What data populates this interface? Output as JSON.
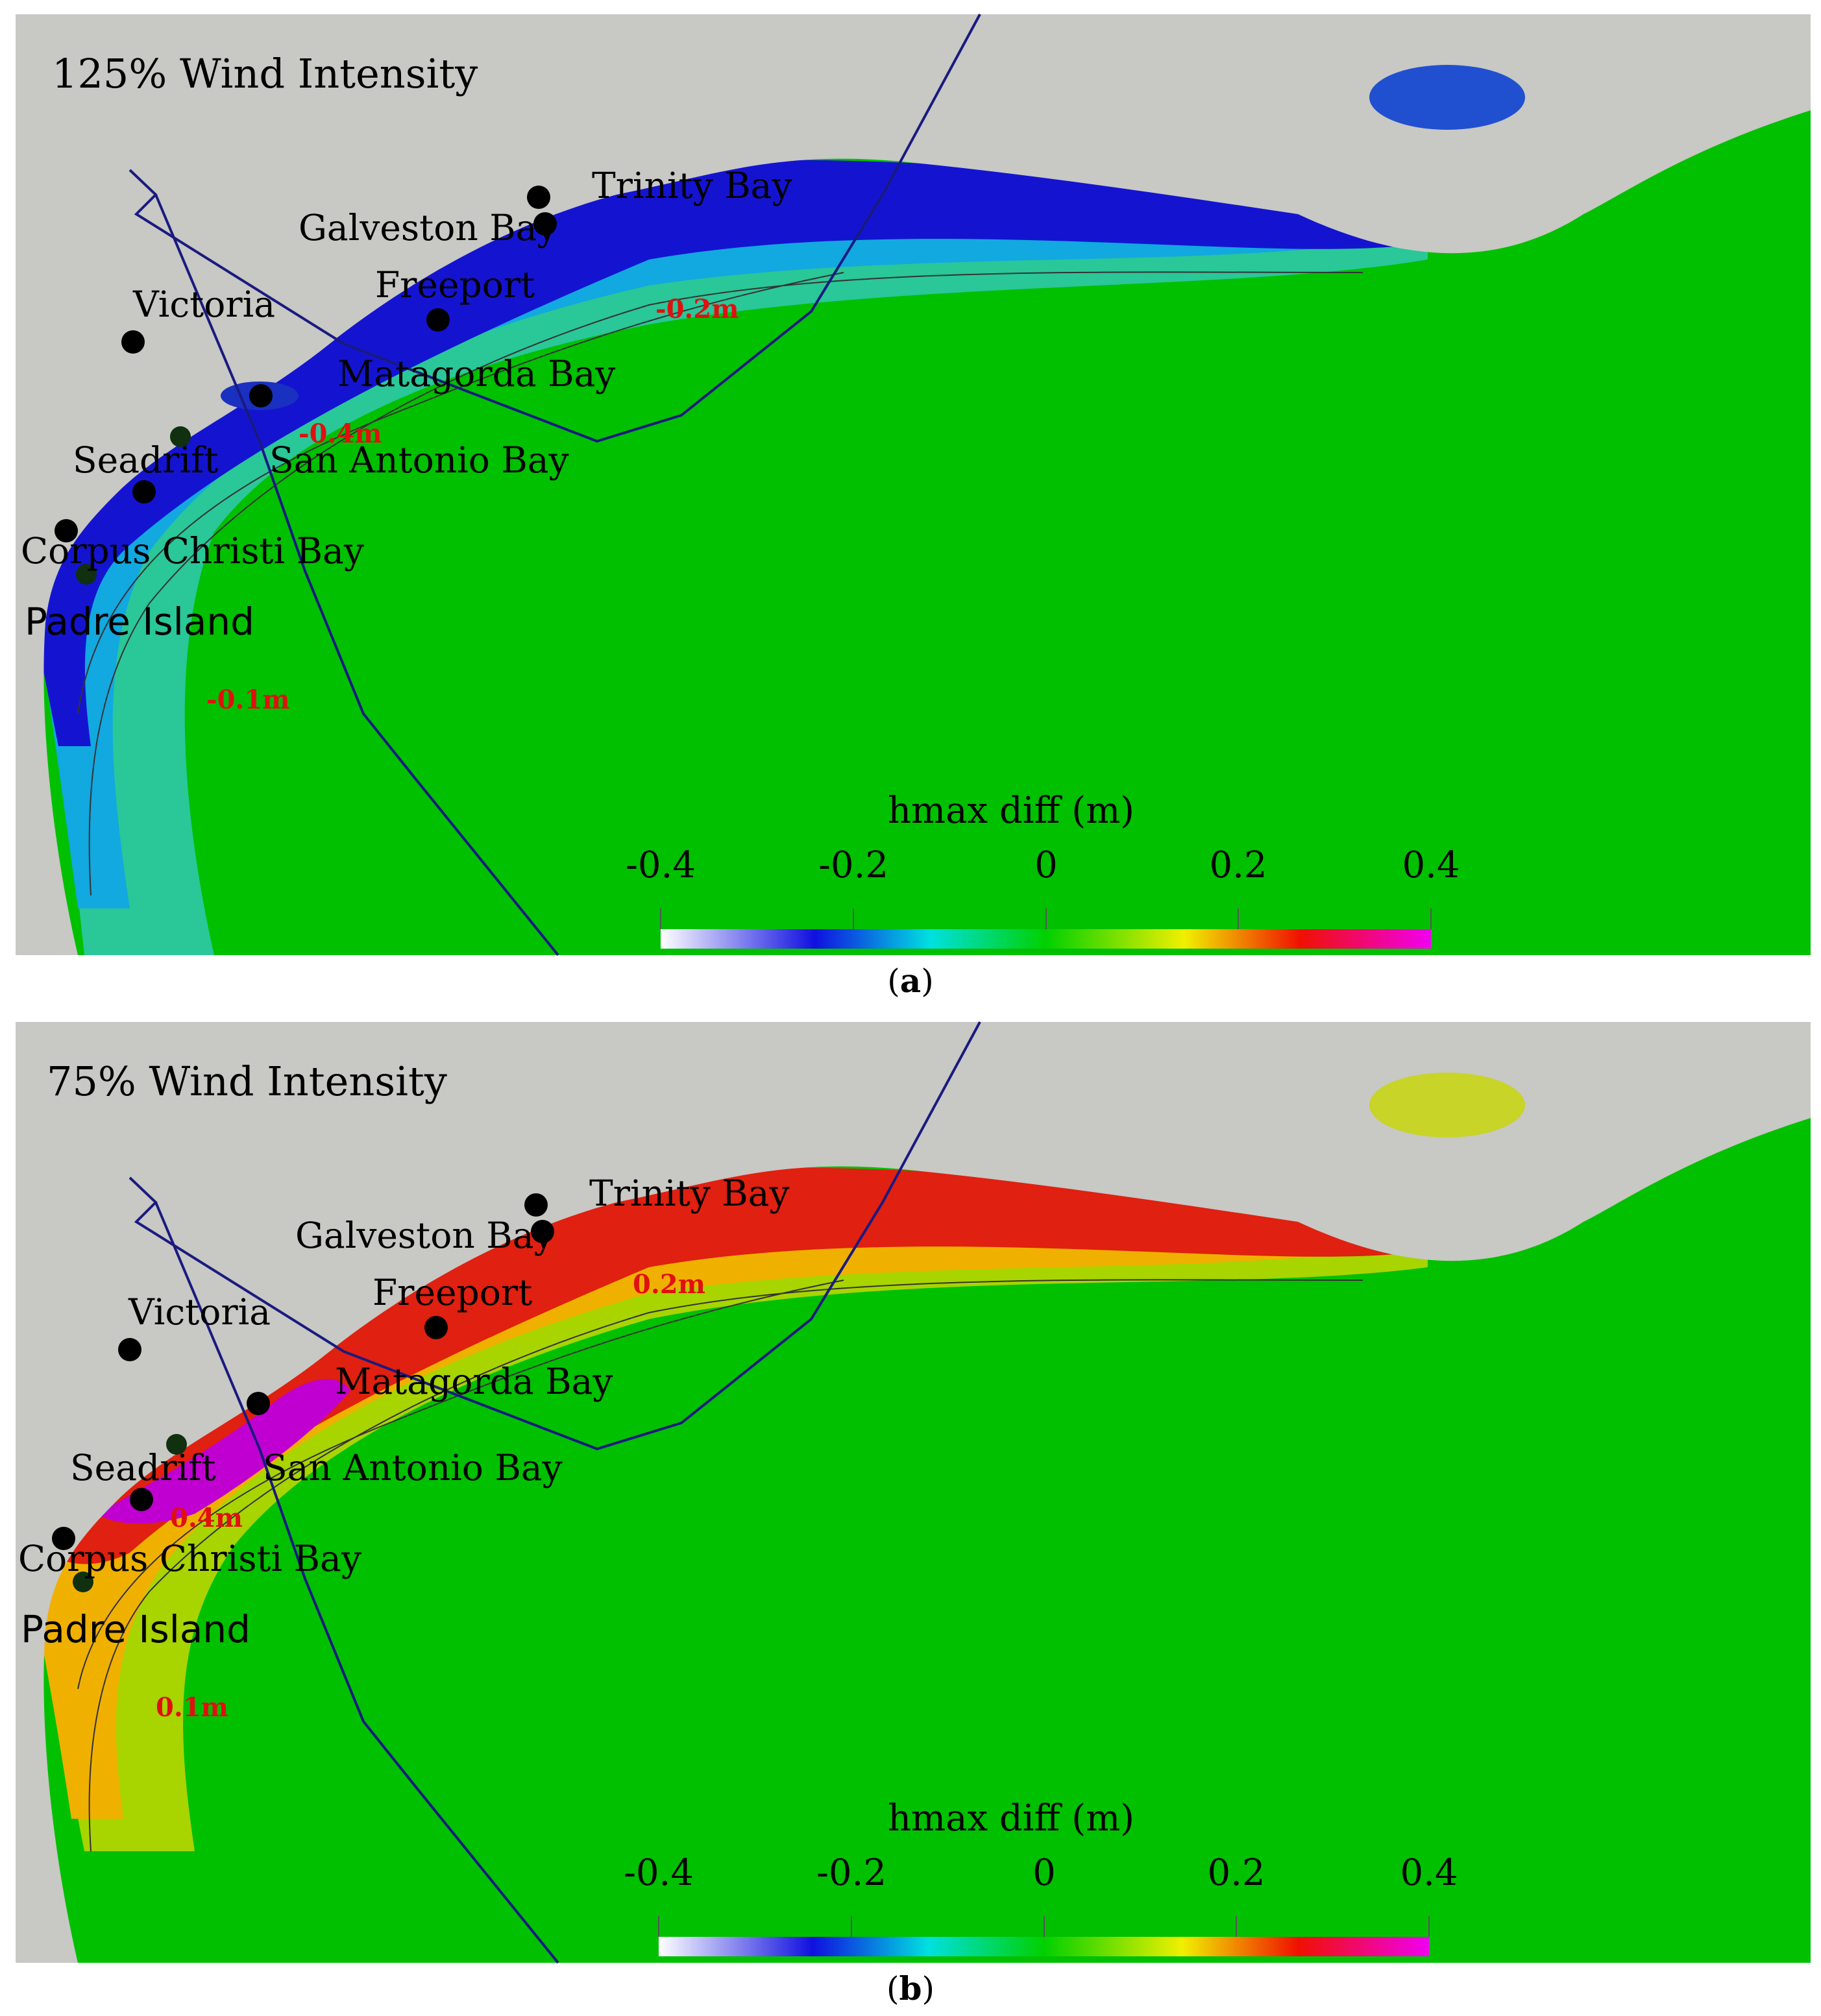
{
  "panels": [
    {
      "id": "a",
      "title": "125% Wind Intensity",
      "caption_letter": "a",
      "locations": [
        "Trinity Bay",
        "Galveston Bay",
        "Freeport",
        "Victoria",
        "Matagorda Bay",
        "Seadrift",
        "San Antonio Bay",
        "Corpus Christi Bay",
        "Padre Island"
      ],
      "contour_labels": [
        "-0.2m",
        "-0.4m",
        "-0.1m"
      ],
      "colorbar": {
        "title": "hmax diff (m)",
        "ticks": [
          "-0.4",
          "-0.2",
          "0",
          "0.2",
          "0.4"
        ]
      },
      "colors": {
        "coast_band": "#1212d8",
        "mid_band": "#14b8d8",
        "outer_band": "#22c7a0",
        "ocean": "#00c000",
        "land": "#c8c8c4"
      }
    },
    {
      "id": "b",
      "title": "75% Wind Intensity",
      "caption_letter": "b",
      "locations": [
        "Trinity Bay",
        "Galveston Bay",
        "Freeport",
        "Victoria",
        "Matagorda Bay",
        "Seadrift",
        "San Antonio Bay",
        "Corpus Christi Bay",
        "Padre Island"
      ],
      "contour_labels": [
        "0.2m",
        "0.4m",
        "0.1m"
      ],
      "colorbar": {
        "title": "hmax diff (m)",
        "ticks": [
          "-0.4",
          "-0.2",
          "0",
          "0.2",
          "0.4"
        ]
      },
      "colors": {
        "coast_band": "#e02010",
        "mid_band": "#f0b000",
        "outer_band": "#a8d400",
        "ocean": "#00c000",
        "land": "#c8c8c4",
        "peak": "#c000d0"
      }
    }
  ],
  "colorbar_gradient": [
    "#ffffff",
    "#1010e0",
    "#00e0e0",
    "#00d000",
    "#f0f000",
    "#f01000",
    "#f000f0"
  ],
  "text_color_contour": "#e01010",
  "track_color": "#1a1a80"
}
